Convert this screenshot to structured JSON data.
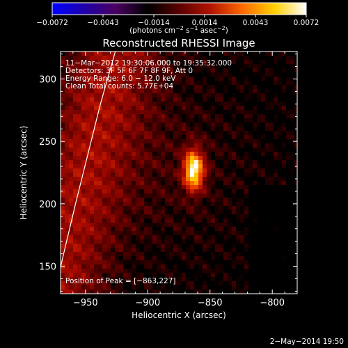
{
  "chart_data": {
    "type": "heatmap",
    "title": "Reconstructed RHESSI Image",
    "xlabel": "Heliocentric X (arcsec)",
    "ylabel": "Heliocentric Y (arcsec)",
    "xlim": [
      -970,
      -780
    ],
    "ylim": [
      128,
      322
    ],
    "x_ticks": [
      -950,
      -900,
      -850,
      -800
    ],
    "x_tick_labels": [
      "−950",
      "−900",
      "−850",
      "−800"
    ],
    "y_ticks": [
      150,
      200,
      250,
      300
    ],
    "y_tick_labels": [
      "150",
      "200",
      "250",
      "300"
    ],
    "colorbar": {
      "range": [
        -0.0072,
        0.0072
      ],
      "tick_labels": [
        "−0.0072",
        "−0.0043",
        "−0.0014",
        "0.0014",
        "0.0043",
        "0.0072"
      ],
      "unit_label_parts": [
        "(photons cm",
        "−2",
        " s",
        "−1",
        " asec",
        "−2",
        ")"
      ],
      "colormap_stops": [
        "#0000ff",
        "#1e00aa",
        "#4a0060",
        "#000000",
        "#5a0000",
        "#b31400",
        "#ff6a00",
        "#ffd000",
        "#ffffff"
      ]
    },
    "annotations": [
      "11−Mar−2012 19:30:06.000 to 19:35:32.000",
      "Detectors: 3F 5F 6F 7F 8F 9F, Att 0",
      "Energy Range: 6.0 − 12.0 keV",
      "Clean    Total counts: 5.77E+04"
    ],
    "peak_label": "Position of Peak = [−863,227]",
    "peak": {
      "x": -863,
      "y": 227
    },
    "limb_curve": [
      [
        -975,
        128
      ],
      [
        -968,
        158
      ],
      [
        -958,
        200
      ],
      [
        -948,
        240
      ],
      [
        -938,
        280
      ],
      [
        -926,
        322
      ]
    ],
    "grid": false
  },
  "footer_date": "2−May−2014 19:50"
}
